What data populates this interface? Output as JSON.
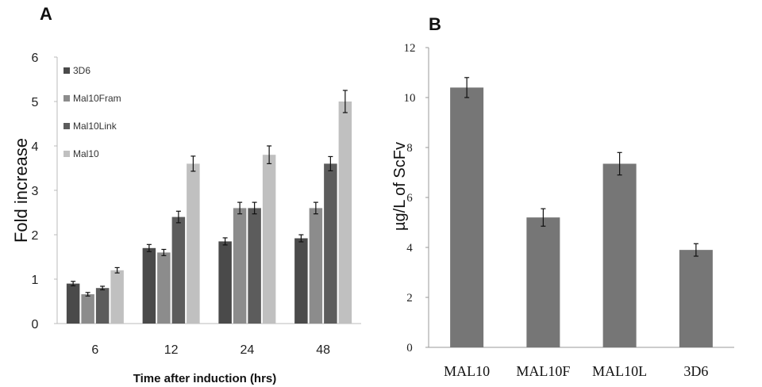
{
  "chart_data": [
    {
      "type": "bar",
      "panel": "A",
      "title": "",
      "xlabel": "Time after induction (hrs)",
      "ylabel": "Fold increase",
      "ylim": [
        0,
        6
      ],
      "yticks": [
        0,
        1,
        2,
        3,
        4,
        5,
        6
      ],
      "categories": [
        "6",
        "12",
        "24",
        "48"
      ],
      "legend_position": "top-left",
      "grid": false,
      "series": [
        {
          "name": "3D6",
          "color": "#4a4a4a",
          "values": [
            0.9,
            1.7,
            1.85,
            1.92
          ],
          "errors": [
            0.05,
            0.08,
            0.08,
            0.08
          ]
        },
        {
          "name": "Mal10Fram",
          "color": "#8c8c8c",
          "values": [
            0.66,
            1.6,
            2.6,
            2.6
          ],
          "errors": [
            0.04,
            0.07,
            0.13,
            0.13
          ]
        },
        {
          "name": "Mal10Link",
          "color": "#5c5c5c",
          "values": [
            0.8,
            2.4,
            2.6,
            3.6
          ],
          "errors": [
            0.04,
            0.13,
            0.13,
            0.16
          ]
        },
        {
          "name": "Mal10",
          "color": "#c0c0c0",
          "values": [
            1.2,
            3.6,
            3.8,
            5.0
          ],
          "errors": [
            0.06,
            0.17,
            0.2,
            0.25
          ]
        }
      ]
    },
    {
      "type": "bar",
      "panel": "B",
      "title": "",
      "xlabel": "",
      "ylabel": "µg/L of ScFv",
      "ylim": [
        0,
        12
      ],
      "yticks": [
        0,
        2,
        4,
        6,
        8,
        10,
        12
      ],
      "categories": [
        "MAL10",
        "MAL10F",
        "MAL10L",
        "3D6"
      ],
      "color": "#767676",
      "grid": false,
      "values": [
        10.4,
        5.2,
        7.35,
        3.9
      ],
      "errors": [
        0.4,
        0.35,
        0.45,
        0.25
      ]
    }
  ]
}
